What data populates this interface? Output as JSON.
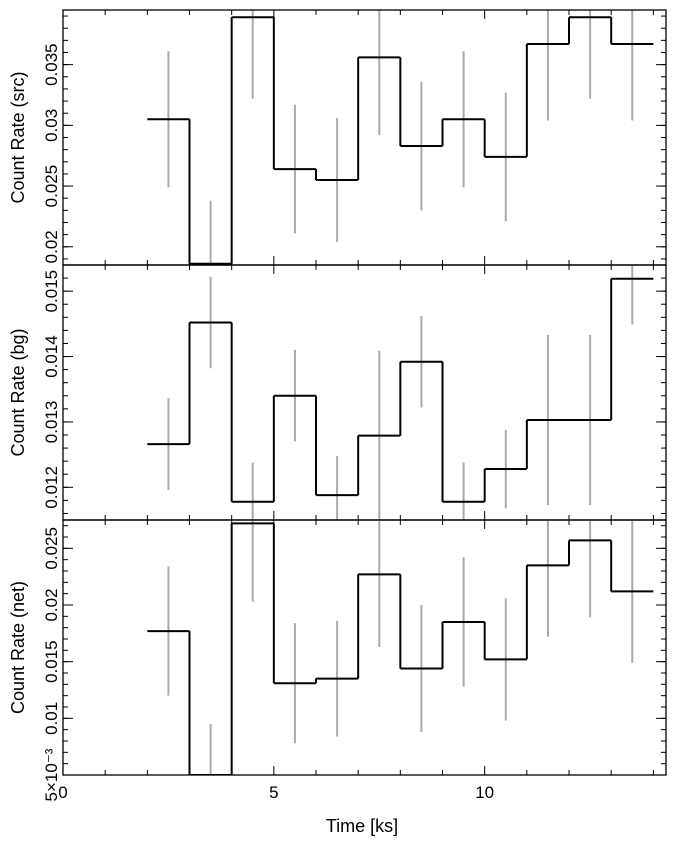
{
  "figure": {
    "xlabel": "Time [ks]",
    "xlim": [
      0,
      14.3
    ],
    "xticks": [
      {
        "value": 0,
        "label": "0"
      },
      {
        "value": 5,
        "label": "5"
      },
      {
        "value": 10,
        "label": "10"
      }
    ]
  },
  "chart_data": [
    {
      "type": "line",
      "style": "step",
      "ylabel": "Count Rate (src)",
      "ylim": [
        0.0185,
        0.0395
      ],
      "yticks": [
        {
          "value": 0.02,
          "label": "0.02"
        },
        {
          "value": 0.025,
          "label": "0.025"
        },
        {
          "value": 0.03,
          "label": "0.03"
        },
        {
          "value": 0.035,
          "label": "0.035"
        }
      ],
      "bin_edges": [
        2,
        3,
        4,
        5,
        6,
        7,
        8,
        9,
        10,
        11,
        12,
        13,
        14
      ],
      "values": [
        0.0305,
        0.0186,
        0.0389,
        0.0264,
        0.0255,
        0.0356,
        0.0283,
        0.0305,
        0.0274,
        0.0367,
        0.0389,
        0.0367
      ],
      "errors": [
        0.0056,
        0.0052,
        0.0067,
        0.0053,
        0.0051,
        0.0064,
        0.0053,
        0.0056,
        0.0053,
        0.0063,
        0.0067,
        0.0063
      ]
    },
    {
      "type": "line",
      "style": "step",
      "ylabel": "Count Rate (bg)",
      "ylim": [
        0.0115,
        0.0154
      ],
      "yticks": [
        {
          "value": 0.012,
          "label": "0.012"
        },
        {
          "value": 0.013,
          "label": "0.013"
        },
        {
          "value": 0.014,
          "label": "0.014"
        },
        {
          "value": 0.015,
          "label": "0.015"
        }
      ],
      "bin_edges": [
        2,
        3,
        4,
        5,
        6,
        7,
        8,
        9,
        10,
        11,
        12,
        13,
        14
      ],
      "values": [
        0.01266,
        0.01452,
        0.01178,
        0.0134,
        0.01188,
        0.01279,
        0.01392,
        0.01178,
        0.01228,
        0.01303,
        0.01303,
        0.01519
      ],
      "errors": [
        0.0007,
        0.0007,
        0.0006,
        0.0007,
        0.0006,
        0.0013,
        0.0007,
        0.0006,
        0.0006,
        0.0013,
        0.0013,
        0.0007
      ]
    },
    {
      "type": "line",
      "style": "step",
      "ylabel": "Count Rate (net)",
      "ylim": [
        0.005,
        0.0275
      ],
      "yticks": [
        {
          "value": 0.005,
          "label": "5×10⁻³"
        },
        {
          "value": 0.01,
          "label": "0.01"
        },
        {
          "value": 0.015,
          "label": "0.015"
        },
        {
          "value": 0.02,
          "label": "0.02"
        },
        {
          "value": 0.025,
          "label": "0.025"
        }
      ],
      "bin_edges": [
        2,
        3,
        4,
        5,
        6,
        7,
        8,
        9,
        10,
        11,
        12,
        13,
        14
      ],
      "values": [
        0.0177,
        0.005,
        0.0272,
        0.0131,
        0.0135,
        0.0227,
        0.0144,
        0.0185,
        0.0152,
        0.0235,
        0.0257,
        0.0212
      ],
      "errors": [
        0.0057,
        0.0045,
        0.0069,
        0.0053,
        0.0051,
        0.0064,
        0.0056,
        0.0057,
        0.0054,
        0.0063,
        0.0068,
        0.0063
      ]
    }
  ]
}
